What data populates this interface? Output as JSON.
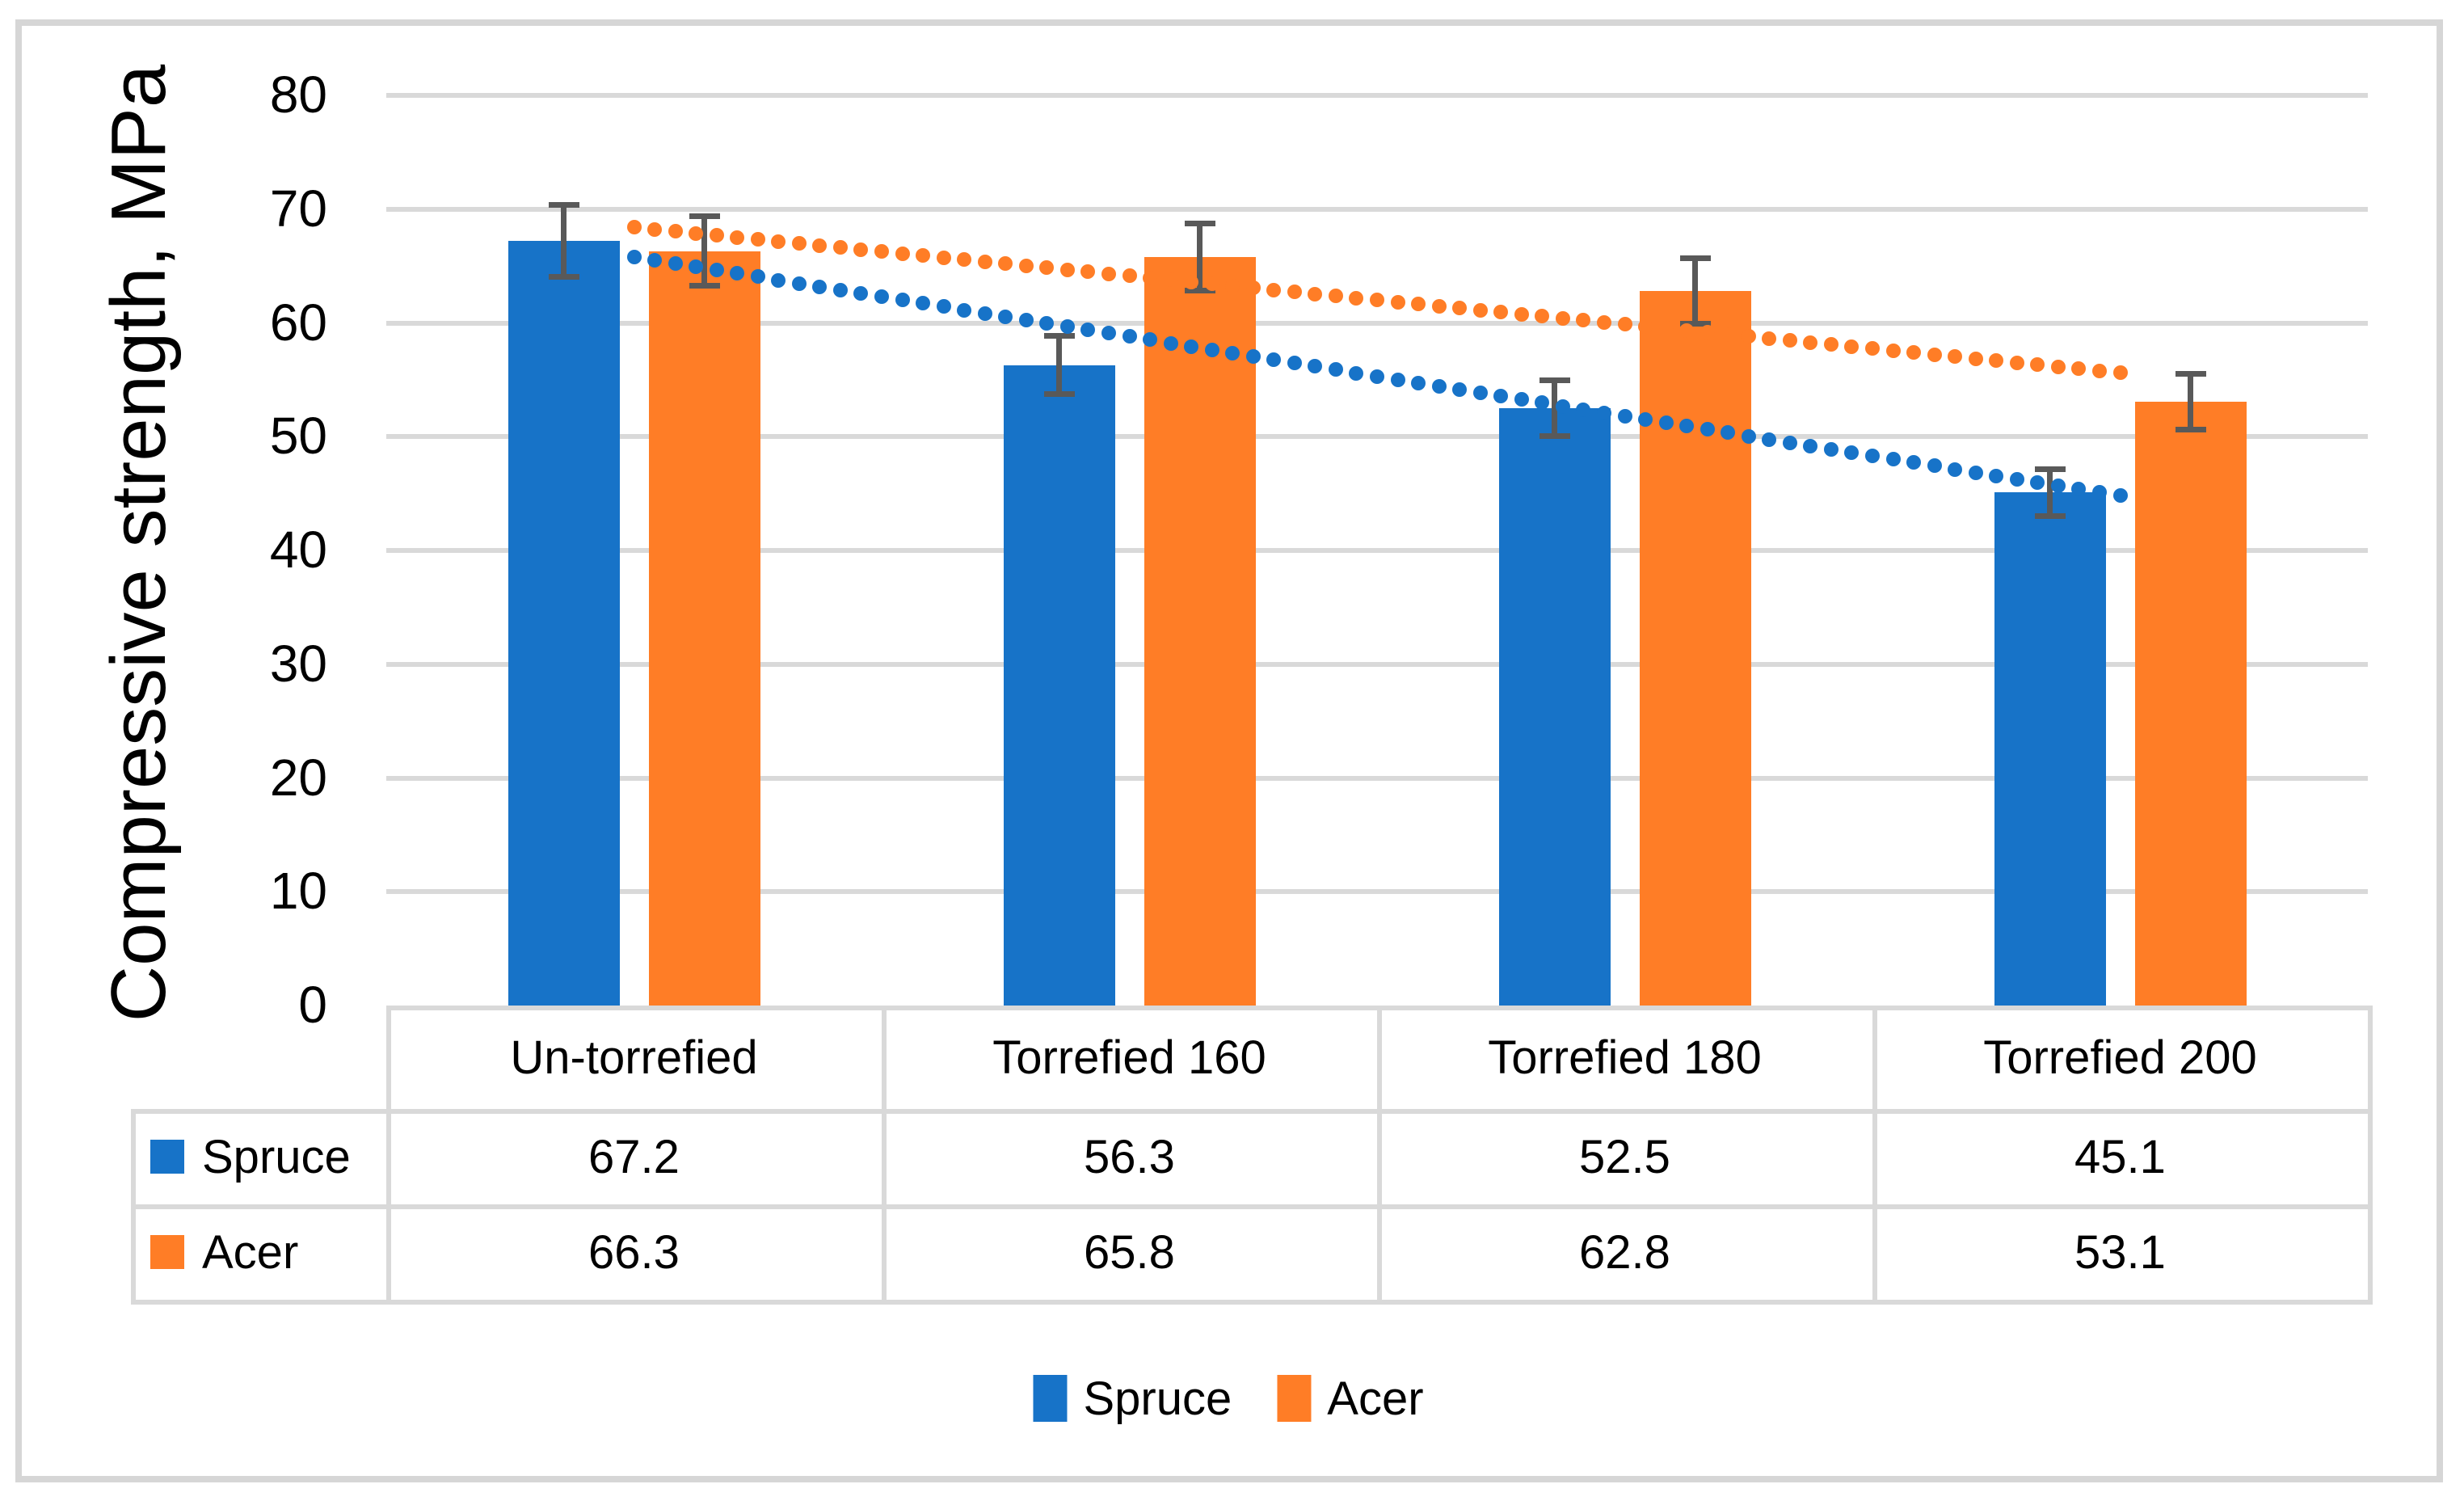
{
  "chart_data": {
    "type": "bar",
    "title": "",
    "ylabel": "Compressive strength, MPa",
    "xlabel": "",
    "categories": [
      "Un-torrefied",
      "Torrefied 160",
      "Torrefied 180",
      "Torrefied 200"
    ],
    "series": [
      {
        "name": "Spruce",
        "color": "#1773C8",
        "values": [
          67.2,
          56.3,
          52.5,
          45.1
        ],
        "error_bars": [
          3.4,
          2.8,
          2.7,
          2.3
        ],
        "trendline": {
          "style": "dotted",
          "start_value": 65.8,
          "end_value": 44.8
        }
      },
      {
        "name": "Acer",
        "color": "#FF7D26",
        "values": [
          66.3,
          65.8,
          62.8,
          53.1
        ],
        "error_bars": [
          3.3,
          3.2,
          3.1,
          2.7
        ],
        "trendline": {
          "style": "dotted",
          "start_value": 68.4,
          "end_value": 55.6
        }
      }
    ],
    "ylim": [
      0,
      80
    ],
    "yticks": [
      80,
      70,
      60,
      50,
      40,
      30,
      20,
      10,
      0
    ],
    "grid": true,
    "gridline_color": "#D9D9D9",
    "error_bar_color": "#595959",
    "legend_position": "bottom",
    "data_table_shown": true
  },
  "table": {
    "column_headers": [
      "Un-torrefied",
      "Torrefied 160",
      "Torrefied 180",
      "Torrefied 200"
    ],
    "rows": [
      {
        "label": "Spruce",
        "key_color": "#1773C8",
        "values": [
          "67.2",
          "56.3",
          "52.5",
          "45.1"
        ]
      },
      {
        "label": "Acer",
        "key_color": "#FF7D26",
        "values": [
          "66.3",
          "65.8",
          "62.8",
          "53.1"
        ]
      }
    ]
  },
  "legend": {
    "items": [
      {
        "label": "Spruce",
        "color": "#1773C8"
      },
      {
        "label": "Acer",
        "color": "#FF7D26"
      }
    ]
  },
  "axis": {
    "y_title": "Compressive strength, MPa"
  }
}
